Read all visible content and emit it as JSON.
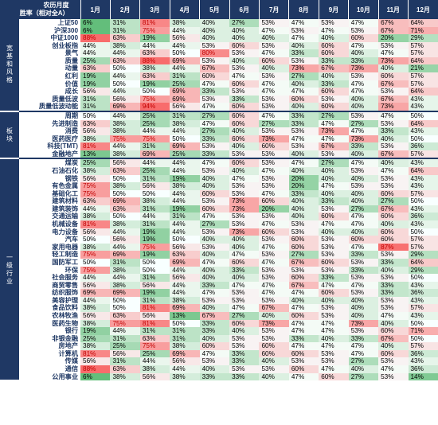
{
  "header": {
    "title_line1": "农历月度",
    "title_line2": "胜率（相对全A）",
    "months": [
      "1月",
      "2月",
      "3月",
      "4月",
      "5月",
      "6月",
      "7月",
      "8月",
      "9月",
      "10月",
      "11月",
      "12月"
    ]
  },
  "groups": [
    {
      "name": "宽基和风格",
      "rows": [
        {
          "label": "上证50",
          "values": [
            "6%",
            "31%",
            "81%",
            "38%",
            "40%",
            "27%",
            "53%",
            "47%",
            "53%",
            "47%",
            "67%",
            "64%"
          ]
        },
        {
          "label": "沪深300",
          "values": [
            "6%",
            "31%",
            "75%",
            "44%",
            "40%",
            "40%",
            "47%",
            "53%",
            "47%",
            "53%",
            "67%",
            "71%"
          ]
        },
        {
          "label": "中证1000",
          "values": [
            "88%",
            "63%",
            "19%",
            "56%",
            "40%",
            "40%",
            "40%",
            "47%",
            "40%",
            "60%",
            "20%",
            "29%"
          ]
        },
        {
          "label": "创业板指",
          "values": [
            "44%",
            "38%",
            "44%",
            "44%",
            "53%",
            "60%",
            "53%",
            "40%",
            "60%",
            "47%",
            "53%",
            "57%"
          ]
        },
        {
          "label": "景气",
          "values": [
            "44%",
            "44%",
            "63%",
            "50%",
            "80%",
            "53%",
            "47%",
            "33%",
            "60%",
            "40%",
            "47%",
            "57%"
          ]
        },
        {
          "label": "质量",
          "values": [
            "25%",
            "63%",
            "88%",
            "69%",
            "53%",
            "40%",
            "60%",
            "53%",
            "33%",
            "33%",
            "73%",
            "64%"
          ]
        },
        {
          "label": "动量",
          "values": [
            "63%",
            "50%",
            "38%",
            "44%",
            "67%",
            "53%",
            "40%",
            "73%",
            "67%",
            "73%",
            "40%",
            "21%"
          ]
        },
        {
          "label": "红利",
          "values": [
            "19%",
            "44%",
            "63%",
            "31%",
            "60%",
            "47%",
            "53%",
            "27%",
            "40%",
            "53%",
            "60%",
            "57%"
          ]
        },
        {
          "label": "价值",
          "values": [
            "19%",
            "50%",
            "19%",
            "25%",
            "47%",
            "60%",
            "47%",
            "40%",
            "33%",
            "47%",
            "67%",
            "57%"
          ]
        },
        {
          "label": "成长",
          "values": [
            "56%",
            "44%",
            "50%",
            "69%",
            "33%",
            "53%",
            "47%",
            "47%",
            "60%",
            "47%",
            "53%",
            "64%"
          ]
        },
        {
          "label": "质量低波",
          "values": [
            "31%",
            "56%",
            "75%",
            "69%",
            "53%",
            "33%",
            "53%",
            "60%",
            "53%",
            "40%",
            "67%",
            "43%"
          ]
        },
        {
          "label": "质量低波动能",
          "values": [
            "31%",
            "69%",
            "94%",
            "56%",
            "47%",
            "60%",
            "53%",
            "40%",
            "60%",
            "40%",
            "73%",
            "43%"
          ]
        }
      ]
    },
    {
      "name": "板块",
      "rows": [
        {
          "label": "周期",
          "values": [
            "50%",
            "44%",
            "25%",
            "31%",
            "27%",
            "60%",
            "47%",
            "33%",
            "27%",
            "53%",
            "47%",
            "50%"
          ]
        },
        {
          "label": "先进制造",
          "values": [
            "63%",
            "38%",
            "25%",
            "38%",
            "47%",
            "60%",
            "27%",
            "33%",
            "47%",
            "27%",
            "53%",
            "64%"
          ]
        },
        {
          "label": "消费",
          "values": [
            "56%",
            "38%",
            "44%",
            "44%",
            "27%",
            "40%",
            "53%",
            "53%",
            "73%",
            "47%",
            "33%",
            "43%"
          ]
        },
        {
          "label": "医药医疗",
          "values": [
            "38%",
            "75%",
            "75%",
            "50%",
            "33%",
            "60%",
            "73%",
            "47%",
            "47%",
            "73%",
            "40%",
            "50%"
          ]
        },
        {
          "label": "科技(TMT)",
          "values": [
            "81%",
            "44%",
            "31%",
            "69%",
            "53%",
            "40%",
            "60%",
            "53%",
            "67%",
            "33%",
            "53%",
            "36%"
          ]
        },
        {
          "label": "金融地产",
          "values": [
            "13%",
            "38%",
            "69%",
            "25%",
            "33%",
            "53%",
            "53%",
            "40%",
            "53%",
            "40%",
            "67%",
            "57%"
          ]
        }
      ]
    },
    {
      "name": "一级行业",
      "rows": [
        {
          "label": "煤炭",
          "values": [
            "25%",
            "56%",
            "44%",
            "44%",
            "47%",
            "60%",
            "53%",
            "47%",
            "27%",
            "47%",
            "40%",
            "43%"
          ]
        },
        {
          "label": "石油石化",
          "values": [
            "38%",
            "63%",
            "25%",
            "44%",
            "53%",
            "40%",
            "47%",
            "40%",
            "40%",
            "53%",
            "47%",
            "64%"
          ]
        },
        {
          "label": "钢铁",
          "values": [
            "56%",
            "50%",
            "31%",
            "19%",
            "40%",
            "47%",
            "53%",
            "20%",
            "40%",
            "40%",
            "53%",
            "43%"
          ]
        },
        {
          "label": "有色金属",
          "values": [
            "75%",
            "38%",
            "56%",
            "38%",
            "40%",
            "53%",
            "53%",
            "20%",
            "47%",
            "53%",
            "53%",
            "43%"
          ]
        },
        {
          "label": "基础化工",
          "values": [
            "75%",
            "50%",
            "50%",
            "44%",
            "60%",
            "53%",
            "47%",
            "33%",
            "40%",
            "40%",
            "60%",
            "57%"
          ]
        },
        {
          "label": "建筑材料",
          "values": [
            "63%",
            "69%",
            "38%",
            "44%",
            "53%",
            "73%",
            "60%",
            "40%",
            "33%",
            "40%",
            "27%",
            "50%"
          ]
        },
        {
          "label": "建筑装饰",
          "values": [
            "44%",
            "63%",
            "31%",
            "19%",
            "60%",
            "73%",
            "20%",
            "40%",
            "53%",
            "27%",
            "67%",
            "43%"
          ]
        },
        {
          "label": "交通运输",
          "values": [
            "38%",
            "50%",
            "44%",
            "31%",
            "47%",
            "53%",
            "53%",
            "40%",
            "60%",
            "47%",
            "60%",
            "36%"
          ]
        },
        {
          "label": "机械设备",
          "values": [
            "81%",
            "38%",
            "31%",
            "44%",
            "27%",
            "53%",
            "47%",
            "53%",
            "47%",
            "47%",
            "40%",
            "43%"
          ]
        },
        {
          "label": "电力设备",
          "values": [
            "56%",
            "44%",
            "19%",
            "44%",
            "53%",
            "73%",
            "60%",
            "53%",
            "40%",
            "40%",
            "60%",
            "50%"
          ]
        },
        {
          "label": "汽车",
          "values": [
            "50%",
            "56%",
            "19%",
            "50%",
            "40%",
            "40%",
            "53%",
            "60%",
            "53%",
            "60%",
            "60%",
            "57%"
          ]
        },
        {
          "label": "家用电器",
          "values": [
            "38%",
            "44%",
            "75%",
            "56%",
            "53%",
            "40%",
            "47%",
            "60%",
            "53%",
            "47%",
            "87%",
            "57%"
          ]
        },
        {
          "label": "轻工制造",
          "values": [
            "75%",
            "69%",
            "19%",
            "63%",
            "40%",
            "47%",
            "53%",
            "27%",
            "53%",
            "33%",
            "53%",
            "29%"
          ]
        },
        {
          "label": "国防军工",
          "values": [
            "50%",
            "31%",
            "50%",
            "69%",
            "47%",
            "60%",
            "47%",
            "67%",
            "60%",
            "53%",
            "33%",
            "64%"
          ]
        },
        {
          "label": "环保",
          "values": [
            "75%",
            "38%",
            "50%",
            "44%",
            "40%",
            "33%",
            "53%",
            "53%",
            "53%",
            "33%",
            "40%",
            "29%"
          ]
        },
        {
          "label": "社会服务",
          "values": [
            "44%",
            "44%",
            "31%",
            "56%",
            "40%",
            "40%",
            "53%",
            "60%",
            "33%",
            "53%",
            "53%",
            "50%"
          ]
        },
        {
          "label": "商贸零售",
          "values": [
            "56%",
            "38%",
            "56%",
            "44%",
            "33%",
            "47%",
            "47%",
            "67%",
            "47%",
            "47%",
            "33%",
            "43%"
          ]
        },
        {
          "label": "纺织服饰",
          "values": [
            "69%",
            "69%",
            "19%",
            "44%",
            "47%",
            "53%",
            "47%",
            "47%",
            "60%",
            "53%",
            "33%",
            "36%"
          ]
        },
        {
          "label": "美容护理",
          "values": [
            "44%",
            "50%",
            "31%",
            "38%",
            "53%",
            "53%",
            "53%",
            "40%",
            "40%",
            "40%",
            "53%",
            "43%"
          ]
        },
        {
          "label": "食品饮料",
          "values": [
            "38%",
            "50%",
            "81%",
            "69%",
            "40%",
            "47%",
            "67%",
            "47%",
            "53%",
            "40%",
            "53%",
            "57%"
          ]
        },
        {
          "label": "农林牧渔",
          "values": [
            "56%",
            "63%",
            "56%",
            "13%",
            "67%",
            "27%",
            "40%",
            "60%",
            "53%",
            "40%",
            "47%",
            "43%"
          ]
        },
        {
          "label": "医药生物",
          "values": [
            "38%",
            "75%",
            "81%",
            "50%",
            "33%",
            "60%",
            "73%",
            "47%",
            "47%",
            "73%",
            "40%",
            "50%"
          ]
        },
        {
          "label": "银行",
          "values": [
            "19%",
            "44%",
            "31%",
            "31%",
            "33%",
            "40%",
            "53%",
            "47%",
            "47%",
            "53%",
            "60%",
            "71%"
          ]
        },
        {
          "label": "非银金融",
          "values": [
            "25%",
            "31%",
            "63%",
            "31%",
            "40%",
            "53%",
            "53%",
            "33%",
            "40%",
            "33%",
            "67%",
            "50%"
          ]
        },
        {
          "label": "房地产",
          "values": [
            "38%",
            "25%",
            "75%",
            "38%",
            "60%",
            "53%",
            "60%",
            "47%",
            "47%",
            "47%",
            "40%",
            "57%"
          ]
        },
        {
          "label": "计算机",
          "values": [
            "81%",
            "56%",
            "25%",
            "69%",
            "47%",
            "33%",
            "60%",
            "60%",
            "53%",
            "47%",
            "60%",
            "36%"
          ]
        },
        {
          "label": "传媒",
          "values": [
            "56%",
            "31%",
            "44%",
            "56%",
            "53%",
            "33%",
            "40%",
            "53%",
            "53%",
            "27%",
            "53%",
            "43%"
          ]
        },
        {
          "label": "通信",
          "values": [
            "88%",
            "63%",
            "38%",
            "44%",
            "40%",
            "53%",
            "53%",
            "60%",
            "47%",
            "40%",
            "47%",
            "36%"
          ]
        },
        {
          "label": "公用事业",
          "values": [
            "6%",
            "38%",
            "56%",
            "38%",
            "33%",
            "33%",
            "40%",
            "47%",
            "60%",
            "27%",
            "53%",
            "14%"
          ]
        }
      ]
    }
  ]
}
